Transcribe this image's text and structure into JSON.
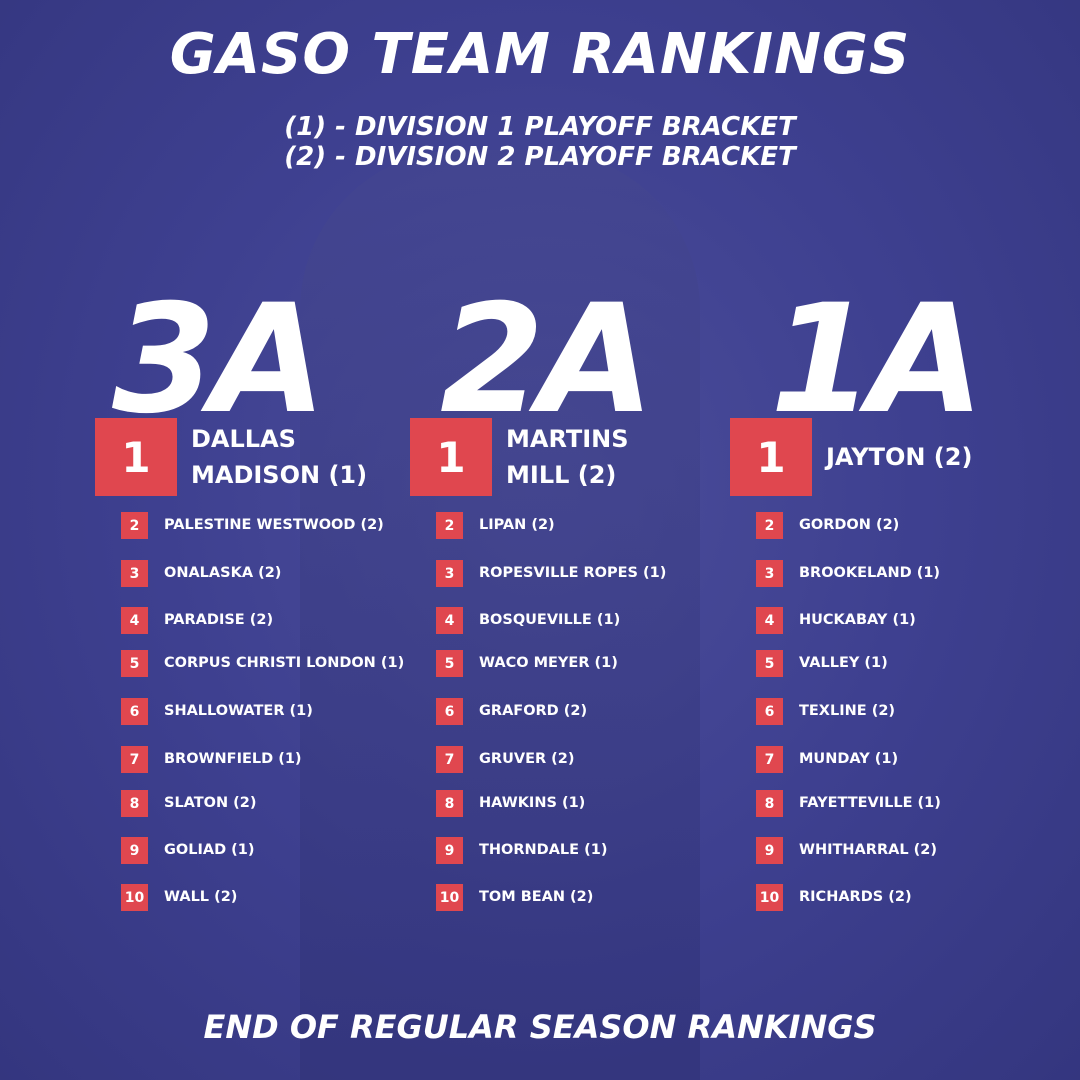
{
  "header": {
    "title": "GASO TEAM RANKINGS",
    "legend": [
      "(1) - DIVISION 1 PLAYOFF BRACKET",
      "(2) - DIVISION 2 PLAYOFF BRACKET"
    ]
  },
  "columns": [
    {
      "division": "3A",
      "teams": [
        {
          "rank": 1,
          "name": "DALLAS MADISON (1)"
        },
        {
          "rank": 2,
          "name": "PALESTINE WESTWOOD (2)"
        },
        {
          "rank": 3,
          "name": "ONALASKA (2)"
        },
        {
          "rank": 4,
          "name": "PARADISE (2)"
        },
        {
          "rank": 5,
          "name": "CORPUS CHRISTI LONDON (1)"
        },
        {
          "rank": 6,
          "name": "SHALLOWATER (1)"
        },
        {
          "rank": 7,
          "name": "BROWNFIELD (1)"
        },
        {
          "rank": 8,
          "name": "SLATON (2)"
        },
        {
          "rank": 9,
          "name": "GOLIAD (1)"
        },
        {
          "rank": 10,
          "name": "WALL (2)"
        }
      ]
    },
    {
      "division": "2A",
      "teams": [
        {
          "rank": 1,
          "name": "MARTINS MILL (2)"
        },
        {
          "rank": 2,
          "name": "LIPAN (2)"
        },
        {
          "rank": 3,
          "name": "ROPESVILLE ROPES (1)"
        },
        {
          "rank": 4,
          "name": "BOSQUEVILLE (1)"
        },
        {
          "rank": 5,
          "name": "WACO MEYER (1)"
        },
        {
          "rank": 6,
          "name": "GRAFORD (2)"
        },
        {
          "rank": 7,
          "name": "GRUVER (2)"
        },
        {
          "rank": 8,
          "name": "HAWKINS (1)"
        },
        {
          "rank": 9,
          "name": "THORNDALE (1)"
        },
        {
          "rank": 10,
          "name": "TOM BEAN (2)"
        }
      ]
    },
    {
      "division": "1A",
      "teams": [
        {
          "rank": 1,
          "name": "JAYTON (2)"
        },
        {
          "rank": 2,
          "name": "GORDON (2)"
        },
        {
          "rank": 3,
          "name": "BROOKELAND (1)"
        },
        {
          "rank": 4,
          "name": "HUCKABAY (1)"
        },
        {
          "rank": 5,
          "name": "VALLEY (1)"
        },
        {
          "rank": 6,
          "name": "TEXLINE (2)"
        },
        {
          "rank": 7,
          "name": "MUNDAY (1)"
        },
        {
          "rank": 8,
          "name": "FAYETTEVILLE (1)"
        },
        {
          "rank": 9,
          "name": "WHITHARRAL (2)"
        },
        {
          "rank": 10,
          "name": "RICHARDS (2)"
        }
      ]
    }
  ],
  "footer": "END OF REGULAR SEASON RANKINGS"
}
